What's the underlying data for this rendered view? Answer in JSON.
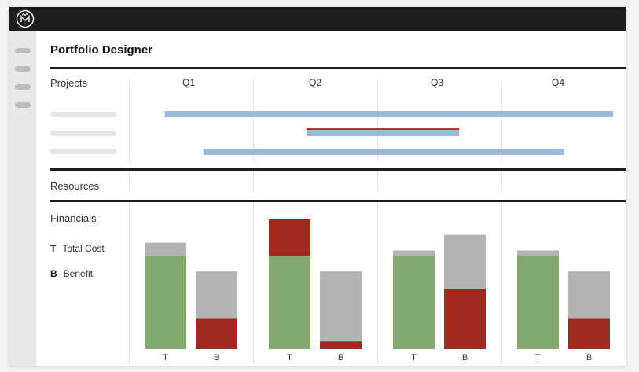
{
  "app": {
    "title": "Portfolio Designer",
    "logo_icon": "crown-m-logo-icon"
  },
  "sidebar": {
    "item_count": 4
  },
  "sections": {
    "projects": "Projects",
    "resources": "Resources",
    "financials": "Financials"
  },
  "quarters": [
    "Q1",
    "Q2",
    "Q3",
    "Q4"
  ],
  "projects": [
    {
      "start_q": 0.29,
      "end_q": 3.9,
      "color": "#9db8d8"
    },
    {
      "start_q": 1.43,
      "end_q": 2.66,
      "color": "#9db8d8",
      "overlay": {
        "start_q": 1.43,
        "end_q": 2.66,
        "color": "#b7352a"
      }
    },
    {
      "start_q": 0.6,
      "end_q": 3.5,
      "color": "#9db8d8"
    }
  ],
  "legend": [
    {
      "key": "T",
      "label": "Total Cost"
    },
    {
      "key": "B",
      "label": "Benefit"
    }
  ],
  "colors": {
    "green": "#82a86f",
    "gray": "#b3b3b3",
    "red": "#9e2a1f",
    "timeline_blue": "#9db8d8"
  },
  "chart_data": {
    "type": "bar",
    "stacked": true,
    "categories": [
      "Q1",
      "Q2",
      "Q3",
      "Q4"
    ],
    "bar_labels": [
      "T",
      "B"
    ],
    "ylim": [
      0,
      170
    ],
    "bars": [
      [
        {
          "green": 120,
          "gray": 17,
          "red": 0
        },
        {
          "red": 40,
          "gray": 60,
          "green": 0
        }
      ],
      [
        {
          "green": 120,
          "gray": 0,
          "red": 47
        },
        {
          "red": 10,
          "gray": 90,
          "green": 0
        }
      ],
      [
        {
          "green": 120,
          "gray": 7,
          "red": 0
        },
        {
          "red": 77,
          "gray": 70,
          "green": 0
        }
      ],
      [
        {
          "green": 120,
          "gray": 7,
          "red": 0
        },
        {
          "red": 40,
          "gray": 60,
          "green": 0
        }
      ]
    ]
  }
}
